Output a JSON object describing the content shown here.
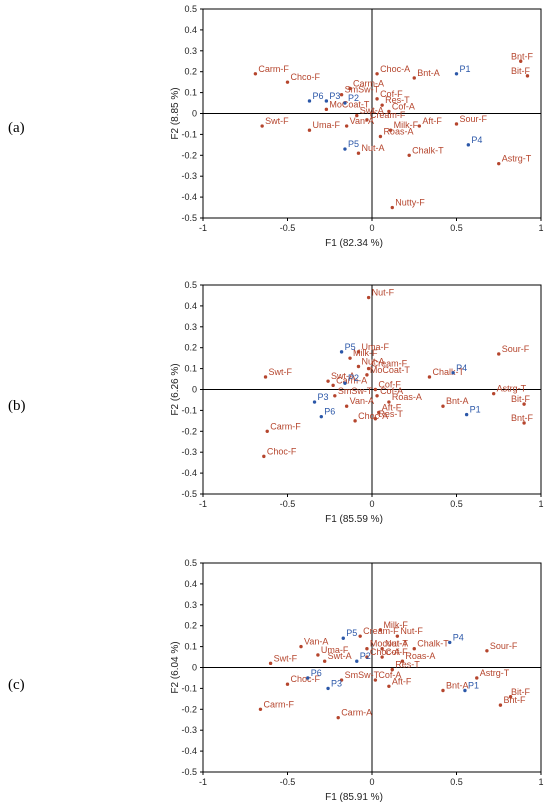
{
  "colors": {
    "attribute": "#b5452d",
    "sample": "#2b57a8",
    "axis": "#000000"
  },
  "chart_data": [
    {
      "type": "scatter",
      "panel_label": "(a)",
      "xlabel": "F1 (82.34 %)",
      "ylabel": "F2 (8.85 %)",
      "xlim": [
        -1,
        1
      ],
      "ylim": [
        -0.5,
        0.5
      ],
      "xticks": [
        "-1",
        "-0.5",
        "0",
        "0.5",
        "1"
      ],
      "yticks": [
        "-0.5",
        "-0.4",
        "-0.3",
        "-0.2",
        "-0.1",
        "0",
        "0.1",
        "0.2",
        "0.3",
        "0.4",
        "0.5"
      ],
      "grid": false,
      "attributes": [
        {
          "label": "Bnt-F",
          "x": 0.88,
          "y": 0.25
        },
        {
          "label": "Bit-F",
          "x": 0.92,
          "y": 0.18
        },
        {
          "label": "Carm-F",
          "x": -0.69,
          "y": 0.19
        },
        {
          "label": "Chco-F",
          "x": -0.5,
          "y": 0.15
        },
        {
          "label": "Carm-A",
          "x": -0.13,
          "y": 0.12
        },
        {
          "label": "Choc-A",
          "x": 0.03,
          "y": 0.19
        },
        {
          "label": "Bnt-A",
          "x": 0.25,
          "y": 0.17
        },
        {
          "label": "SmSw-T",
          "x": -0.18,
          "y": 0.09
        },
        {
          "label": "Cof-F",
          "x": 0.03,
          "y": 0.07
        },
        {
          "label": "Res-T",
          "x": 0.06,
          "y": 0.04
        },
        {
          "label": "MoCoat-T",
          "x": -0.27,
          "y": 0.02
        },
        {
          "label": "Cof-A",
          "x": 0.1,
          "y": 0.01
        },
        {
          "label": "Swt-F",
          "x": -0.65,
          "y": -0.06
        },
        {
          "label": "Swt-A",
          "x": -0.09,
          "y": -0.01
        },
        {
          "label": "Cream-F",
          "x": -0.03,
          "y": -0.03
        },
        {
          "label": "Van-A",
          "x": -0.15,
          "y": -0.06
        },
        {
          "label": "Uma-F",
          "x": -0.37,
          "y": -0.08
        },
        {
          "label": "Aft-F",
          "x": 0.28,
          "y": -0.06
        },
        {
          "label": "Sour-F",
          "x": 0.5,
          "y": -0.05
        },
        {
          "label": "Milk-F",
          "x": 0.11,
          "y": -0.08
        },
        {
          "label": "Roas-A",
          "x": 0.05,
          "y": -0.11
        },
        {
          "label": "Nut-A",
          "x": -0.08,
          "y": -0.19
        },
        {
          "label": "Chalk-T",
          "x": 0.22,
          "y": -0.2
        },
        {
          "label": "Astrg-T",
          "x": 0.75,
          "y": -0.24
        },
        {
          "label": "Nutty-F",
          "x": 0.12,
          "y": -0.45
        }
      ],
      "samples": [
        {
          "label": "P1",
          "x": 0.5,
          "y": 0.19
        },
        {
          "label": "P6",
          "x": -0.37,
          "y": 0.06
        },
        {
          "label": "P3",
          "x": -0.27,
          "y": 0.06
        },
        {
          "label": "P2",
          "x": -0.16,
          "y": 0.05
        },
        {
          "label": "P5",
          "x": -0.16,
          "y": -0.17
        },
        {
          "label": "P4",
          "x": 0.57,
          "y": -0.15
        }
      ]
    },
    {
      "type": "scatter",
      "panel_label": "(b)",
      "xlabel": "F1 (85.59 %)",
      "ylabel": "F2 (6.26 %)",
      "xlim": [
        -1,
        1
      ],
      "ylim": [
        -0.5,
        0.5
      ],
      "xticks": [
        "-1",
        "-0.5",
        "0",
        "0.5",
        "1"
      ],
      "yticks": [
        "-0.5",
        "-0.4",
        "-0.3",
        "-0.2",
        "-0.1",
        "0",
        "0.1",
        "0.2",
        "0.3",
        "0.4",
        "0.5"
      ],
      "grid": false,
      "attributes": [
        {
          "label": "Nut-F",
          "x": -0.02,
          "y": 0.44
        },
        {
          "label": "Uma-F",
          "x": -0.08,
          "y": 0.18
        },
        {
          "label": "Sour-F",
          "x": 0.75,
          "y": 0.17
        },
        {
          "label": "Milk-F",
          "x": -0.13,
          "y": 0.15
        },
        {
          "label": "Nut-A",
          "x": -0.08,
          "y": 0.11
        },
        {
          "label": "Cream-F",
          "x": -0.02,
          "y": 0.1
        },
        {
          "label": "MoCoat-T",
          "x": -0.03,
          "y": 0.07
        },
        {
          "label": "Chalk-T",
          "x": 0.34,
          "y": 0.06
        },
        {
          "label": "Swt-F",
          "x": -0.63,
          "y": 0.06
        },
        {
          "label": "Swt-A",
          "x": -0.26,
          "y": 0.04
        },
        {
          "label": "Carm-A",
          "x": -0.23,
          "y": 0.02
        },
        {
          "label": "Cof-F",
          "x": 0.02,
          "y": 0.0
        },
        {
          "label": "SmSw-T",
          "x": -0.22,
          "y": -0.03
        },
        {
          "label": "Cof-A",
          "x": 0.03,
          "y": -0.03
        },
        {
          "label": "Roas-A",
          "x": 0.1,
          "y": -0.06
        },
        {
          "label": "Astrg-T",
          "x": 0.72,
          "y": -0.02
        },
        {
          "label": "Van-A",
          "x": -0.15,
          "y": -0.08
        },
        {
          "label": "Aft-F",
          "x": 0.04,
          "y": -0.11
        },
        {
          "label": "Bnt-A",
          "x": 0.42,
          "y": -0.08
        },
        {
          "label": "Bit-F",
          "x": 0.9,
          "y": -0.07
        },
        {
          "label": "Res-T",
          "x": 0.02,
          "y": -0.14
        },
        {
          "label": "Choc-A",
          "x": -0.1,
          "y": -0.15
        },
        {
          "label": "Bnt-F",
          "x": 0.9,
          "y": -0.16
        },
        {
          "label": "Carm-F",
          "x": -0.62,
          "y": -0.2
        },
        {
          "label": "Choc-F",
          "x": -0.64,
          "y": -0.32
        }
      ],
      "samples": [
        {
          "label": "P5",
          "x": -0.18,
          "y": 0.18
        },
        {
          "label": "P4",
          "x": 0.48,
          "y": 0.08
        },
        {
          "label": "P2",
          "x": -0.16,
          "y": 0.03
        },
        {
          "label": "P3",
          "x": -0.34,
          "y": -0.06
        },
        {
          "label": "P6",
          "x": -0.3,
          "y": -0.13
        },
        {
          "label": "P1",
          "x": 0.56,
          "y": -0.12
        }
      ]
    },
    {
      "type": "scatter",
      "panel_label": "(c)",
      "xlabel": "F1 (85.91 %)",
      "ylabel": "F2 (6.04 %)",
      "xlim": [
        -1,
        1
      ],
      "ylim": [
        -0.5,
        0.5
      ],
      "xticks": [
        "-1",
        "-0.5",
        "0",
        "0.5",
        "1"
      ],
      "yticks": [
        "-0.5",
        "-0.4",
        "-0.3",
        "-0.2",
        "-0.1",
        "0",
        "0.1",
        "0.2",
        "0.3",
        "0.4",
        "0.5"
      ],
      "grid": false,
      "attributes": [
        {
          "label": "Milk-F",
          "x": 0.05,
          "y": 0.18
        },
        {
          "label": "Cream-F",
          "x": -0.07,
          "y": 0.15
        },
        {
          "label": "Nut-F",
          "x": 0.15,
          "y": 0.15
        },
        {
          "label": "Van-A",
          "x": -0.42,
          "y": 0.1
        },
        {
          "label": "Mocoat-T",
          "x": -0.03,
          "y": 0.09
        },
        {
          "label": "Nut-A",
          "x": 0.06,
          "y": 0.09
        },
        {
          "label": "Chalk-T",
          "x": 0.25,
          "y": 0.09
        },
        {
          "label": "Sour-F",
          "x": 0.68,
          "y": 0.08
        },
        {
          "label": "Uma-F",
          "x": -0.32,
          "y": 0.06
        },
        {
          "label": "Choc-A",
          "x": -0.03,
          "y": 0.05
        },
        {
          "label": "Cof-F",
          "x": 0.06,
          "y": 0.05
        },
        {
          "label": "Swt-A",
          "x": -0.28,
          "y": 0.03
        },
        {
          "label": "Roas-A",
          "x": 0.18,
          "y": 0.03
        },
        {
          "label": "Swt-F",
          "x": -0.6,
          "y": 0.02
        },
        {
          "label": "Res-T",
          "x": 0.12,
          "y": -0.01
        },
        {
          "label": "SmSw-T",
          "x": -0.18,
          "y": -0.06
        },
        {
          "label": "Cof-A",
          "x": 0.02,
          "y": -0.06
        },
        {
          "label": "Astrg-T",
          "x": 0.62,
          "y": -0.05
        },
        {
          "label": "Choc-F",
          "x": -0.5,
          "y": -0.08
        },
        {
          "label": "Aft-F",
          "x": 0.1,
          "y": -0.09
        },
        {
          "label": "Bnt-A",
          "x": 0.42,
          "y": -0.11
        },
        {
          "label": "Bit-F",
          "x": 0.82,
          "y": -0.14
        },
        {
          "label": "Bnt-F",
          "x": 0.76,
          "y": -0.18
        },
        {
          "label": "Carm-F",
          "x": -0.66,
          "y": -0.2
        },
        {
          "label": "Carm-A",
          "x": -0.2,
          "y": -0.24
        }
      ],
      "samples": [
        {
          "label": "P5",
          "x": -0.17,
          "y": 0.14
        },
        {
          "label": "P4",
          "x": 0.46,
          "y": 0.12
        },
        {
          "label": "P2",
          "x": -0.09,
          "y": 0.03
        },
        {
          "label": "P6",
          "x": -0.38,
          "y": -0.05
        },
        {
          "label": "P3",
          "x": -0.26,
          "y": -0.1
        },
        {
          "label": "P1",
          "x": 0.55,
          "y": -0.11
        }
      ]
    }
  ]
}
